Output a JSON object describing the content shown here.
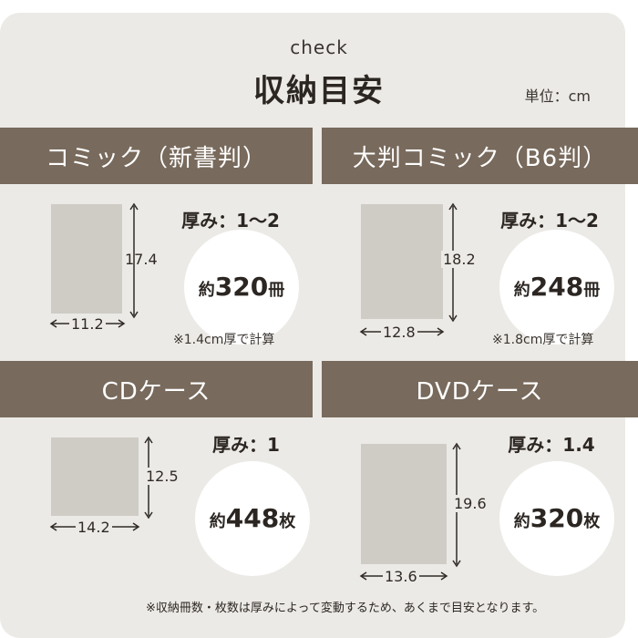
{
  "header": {
    "eyebrow": "check",
    "title": "収納目安",
    "unit": "単位：cm"
  },
  "sections": [
    {
      "title": "コミック（新書判）",
      "width": "11.2",
      "height": "17.4",
      "thickness": "厚み：1〜2",
      "prefix": "約",
      "count": "320",
      "suffix": "冊",
      "note": "※1.4cm厚で計算"
    },
    {
      "title": "大判コミック（B6判）",
      "width": "12.8",
      "height": "18.2",
      "thickness": "厚み：1〜2",
      "prefix": "約",
      "count": "248",
      "suffix": "冊",
      "note": "※1.8cm厚で計算"
    },
    {
      "title": "CDケース",
      "width": "14.2",
      "height": "12.5",
      "thickness": "厚み：1",
      "prefix": "約",
      "count": "448",
      "suffix": "枚"
    },
    {
      "title": "DVDケース",
      "width": "13.6",
      "height": "19.6",
      "thickness": "厚み：1.4",
      "prefix": "約",
      "count": "320",
      "suffix": "枚"
    }
  ],
  "footnote": "※収納冊数・枚数は厚みによって変動するため、あくまで目安となります。",
  "colors": {
    "band": "#786a5c",
    "background": "#eceae6",
    "item": "#cfccc6"
  }
}
